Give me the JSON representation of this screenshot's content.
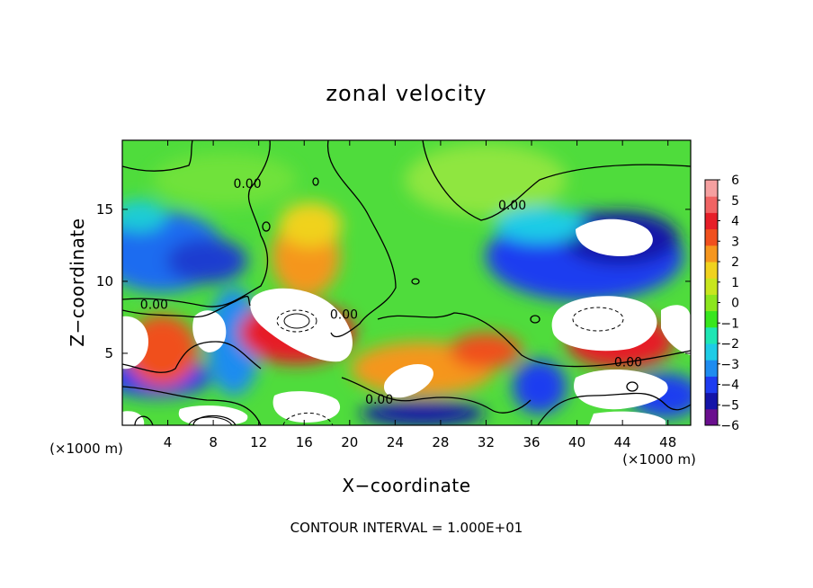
{
  "chart_data": {
    "type": "heatmap",
    "title": "zonal velocity",
    "xlabel": "X−coordinate",
    "ylabel": "Z−coordinate",
    "x_unit": "(×1000 m)",
    "z_unit": "(×1000 m)",
    "footer": "CONTOUR INTERVAL = 1.000E+01",
    "xlim": [
      0,
      50
    ],
    "ylim": [
      0,
      19.8
    ],
    "x_ticks": [
      4,
      8,
      12,
      16,
      20,
      24,
      28,
      32,
      36,
      40,
      44,
      48
    ],
    "y_ticks": [
      5,
      10,
      15
    ],
    "colorbar": {
      "levels": [
        -6,
        -5,
        -4,
        -3,
        -2,
        -1,
        0,
        1,
        2,
        3,
        4,
        5,
        6
      ],
      "tick_labels": [
        "6",
        "5",
        "4",
        "3",
        "2",
        "1",
        "0",
        "−1",
        "−2",
        "−3",
        "−4",
        "−5",
        "−6"
      ],
      "colors": [
        "#6a0f8e",
        "#1414a8",
        "#1e3cf0",
        "#1e8cf0",
        "#1ecce6",
        "#1ee6b4",
        "#38e61e",
        "#8ce61e",
        "#c8e61e",
        "#f0d21e",
        "#f5961e",
        "#f0501e",
        "#e61e28",
        "#f06464",
        "#f5a0a0"
      ]
    },
    "contour_labels": [
      {
        "text": "0.00",
        "x": 11.0,
        "z": 16.8
      },
      {
        "text": "0.00",
        "x": 2.8,
        "z": 8.4
      },
      {
        "text": "0.00",
        "x": 19.5,
        "z": 7.7
      },
      {
        "text": "0.00",
        "x": 22.6,
        "z": 1.8
      },
      {
        "text": "0.00",
        "x": 34.3,
        "z": 15.3
      },
      {
        "text": "0.00",
        "x": 44.5,
        "z": 4.4
      }
    ]
  }
}
